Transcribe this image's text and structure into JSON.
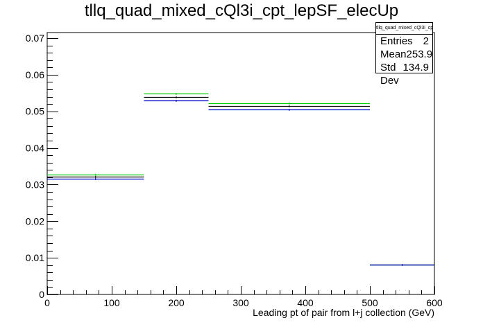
{
  "title": "tllq_quad_mixed_cQl3i_cpt_lepSF_elecUp",
  "stats": {
    "name": "tllq_quad_mixed_cQl3i_cpt_lepSF_elecUp",
    "rows": [
      {
        "label": "Entries",
        "value": "2"
      },
      {
        "label": "Mean",
        "value": "253.9"
      },
      {
        "label": "Std Dev",
        "value": "134.9"
      }
    ]
  },
  "chart_data": {
    "type": "histogram",
    "title": "tllq_quad_mixed_cQl3i_cpt_lepSF_elecUp",
    "xlabel": "Leading pt of pair from l+j collection (GeV)",
    "ylabel": "",
    "xlim": [
      0,
      600
    ],
    "ylim": [
      0,
      0.0715
    ],
    "grid": false,
    "x_ticks": [
      0,
      100,
      200,
      300,
      400,
      500,
      600
    ],
    "y_ticks": [
      0,
      0.01,
      0.02,
      0.03,
      0.04,
      0.05,
      0.06,
      0.07
    ],
    "y_tick_labels": [
      "0",
      "0.01",
      "0.02",
      "0.03",
      "0.04",
      "0.05",
      "0.06",
      "0.07"
    ],
    "bin_edges": [
      0,
      150,
      250,
      500,
      600
    ],
    "series": [
      {
        "color": "#00cc00",
        "values": [
          0.0327,
          0.0549,
          0.0523,
          0.0081
        ]
      },
      {
        "color": "#000000",
        "values": [
          0.0321,
          0.0539,
          0.0514,
          0.0081
        ]
      },
      {
        "color": "#0000cc",
        "values": [
          0.0315,
          0.0529,
          0.0505,
          0.0081
        ]
      }
    ]
  }
}
